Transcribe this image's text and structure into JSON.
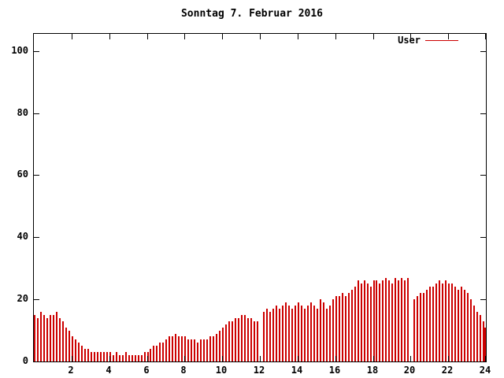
{
  "chart_data": {
    "type": "bar",
    "title": "Sonntag 7. Februar 2016",
    "xlabel": "",
    "ylabel": "",
    "xlim": [
      0,
      24
    ],
    "ylim": [
      0,
      105.5
    ],
    "grid": false,
    "legend_position": "top-right-inside",
    "yticks": [
      0,
      20,
      40,
      60,
      80,
      100
    ],
    "xticks": [
      2,
      4,
      6,
      8,
      10,
      12,
      14,
      16,
      18,
      20,
      22,
      24
    ],
    "x_interval_minutes": 10,
    "series": [
      {
        "name": "User",
        "color": "#cc0000",
        "values": [
          15,
          14,
          16,
          15,
          14,
          15,
          15,
          16,
          14,
          13,
          11,
          10,
          8,
          7,
          6,
          5,
          4,
          4,
          3,
          3,
          3,
          3,
          3,
          3,
          3,
          2,
          3,
          2,
          2,
          3,
          2,
          2,
          2,
          2,
          2,
          3,
          3,
          4,
          5,
          5,
          6,
          6,
          7,
          8,
          8,
          9,
          8,
          8,
          8,
          7,
          7,
          7,
          6,
          7,
          7,
          7,
          8,
          8,
          9,
          10,
          11,
          12,
          13,
          13,
          14,
          14,
          15,
          15,
          14,
          14,
          13,
          13,
          0,
          16,
          17,
          16,
          17,
          18,
          17,
          18,
          19,
          18,
          17,
          18,
          19,
          18,
          17,
          18,
          19,
          18,
          17,
          20,
          19,
          17,
          18,
          20,
          21,
          21,
          22,
          21,
          22,
          23,
          24,
          26,
          25,
          26,
          25,
          24,
          26,
          26,
          25,
          26,
          27,
          26,
          25,
          27,
          26,
          27,
          26,
          27,
          0,
          20,
          21,
          22,
          22,
          23,
          24,
          24,
          25,
          26,
          25,
          26,
          25,
          25,
          24,
          23,
          24,
          23,
          22,
          20,
          18,
          16,
          15,
          13,
          11
        ]
      }
    ]
  }
}
